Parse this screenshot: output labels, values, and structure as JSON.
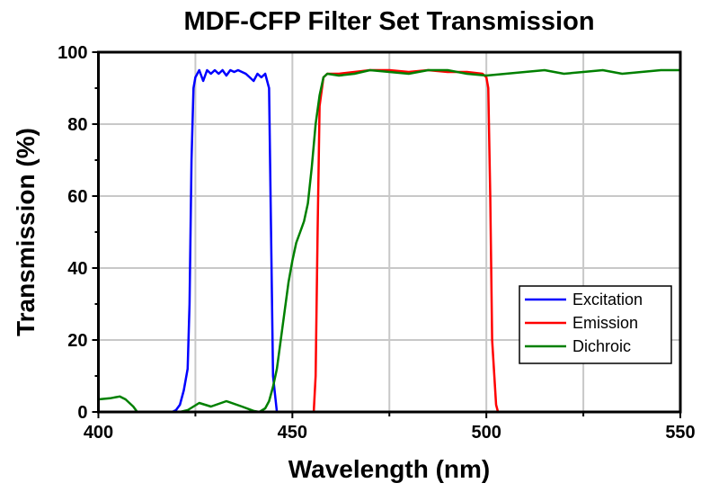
{
  "chart_data": {
    "type": "line",
    "title": "MDF-CFP Filter Set Transmission",
    "xlabel": "Wavelength (nm)",
    "ylabel": "Transmission (%)",
    "xlim": [
      400,
      550
    ],
    "ylim": [
      0,
      100
    ],
    "xticks": [
      400,
      450,
      500,
      550
    ],
    "yticks": [
      0,
      20,
      40,
      60,
      80,
      100
    ],
    "grid": true,
    "legend_position": "bottom-right",
    "series": [
      {
        "name": "Excitation",
        "color": "#0000ff",
        "x": [
          400,
          419,
          420,
          421,
          422,
          423,
          423.5,
          424,
          424.5,
          425,
          426,
          427,
          428,
          429,
          430,
          431,
          432,
          433,
          434,
          435,
          436,
          437,
          438,
          439,
          440,
          441,
          442,
          443,
          444,
          444.5,
          445,
          446,
          550
        ],
        "y": [
          0,
          0,
          0.5,
          2,
          6,
          12,
          30,
          70,
          90,
          93,
          95,
          92,
          95,
          94,
          95,
          94,
          95,
          93.5,
          95,
          94.5,
          95,
          94.5,
          94,
          93,
          92,
          94,
          93,
          94,
          90,
          50,
          10,
          0,
          0
        ]
      },
      {
        "name": "Emission",
        "color": "#ff0000",
        "x": [
          400,
          455.5,
          456,
          456.5,
          457,
          458,
          459,
          462,
          466,
          470,
          475,
          480,
          485,
          490,
          495,
          499,
          500,
          500.5,
          501,
          501.5,
          502.5,
          503,
          550
        ],
        "y": [
          0,
          0,
          10,
          50,
          85,
          93,
          94,
          94,
          94.5,
          95,
          95,
          94.5,
          95,
          94.5,
          94.5,
          94,
          93,
          90,
          60,
          20,
          2,
          0,
          0
        ]
      },
      {
        "name": "Dichroic",
        "color": "#008000",
        "x": [
          400,
          403,
          405.5,
          407,
          409,
          410,
          421,
          423,
          426,
          429,
          433,
          437,
          440,
          441.5,
          443,
          444,
          445,
          446,
          447,
          448,
          449,
          450,
          451,
          452,
          453,
          454,
          455,
          456,
          457,
          458,
          459,
          462,
          466,
          470,
          475,
          480,
          485,
          490,
          495,
          500,
          505,
          510,
          515,
          520,
          525,
          530,
          535,
          540,
          545,
          550
        ],
        "y": [
          3.5,
          3.8,
          4.3,
          3.5,
          1.5,
          0,
          0,
          0.5,
          2.5,
          1.5,
          3,
          1.5,
          0.3,
          0,
          1,
          3,
          7,
          12,
          20,
          28,
          36,
          42,
          47,
          50,
          53,
          58,
          68,
          80,
          88,
          93,
          94,
          93.5,
          94,
          95,
          94.5,
          94,
          95,
          95,
          94,
          93.5,
          94,
          94.5,
          95,
          94,
          94.5,
          95,
          94,
          94.5,
          95,
          95
        ]
      }
    ]
  }
}
